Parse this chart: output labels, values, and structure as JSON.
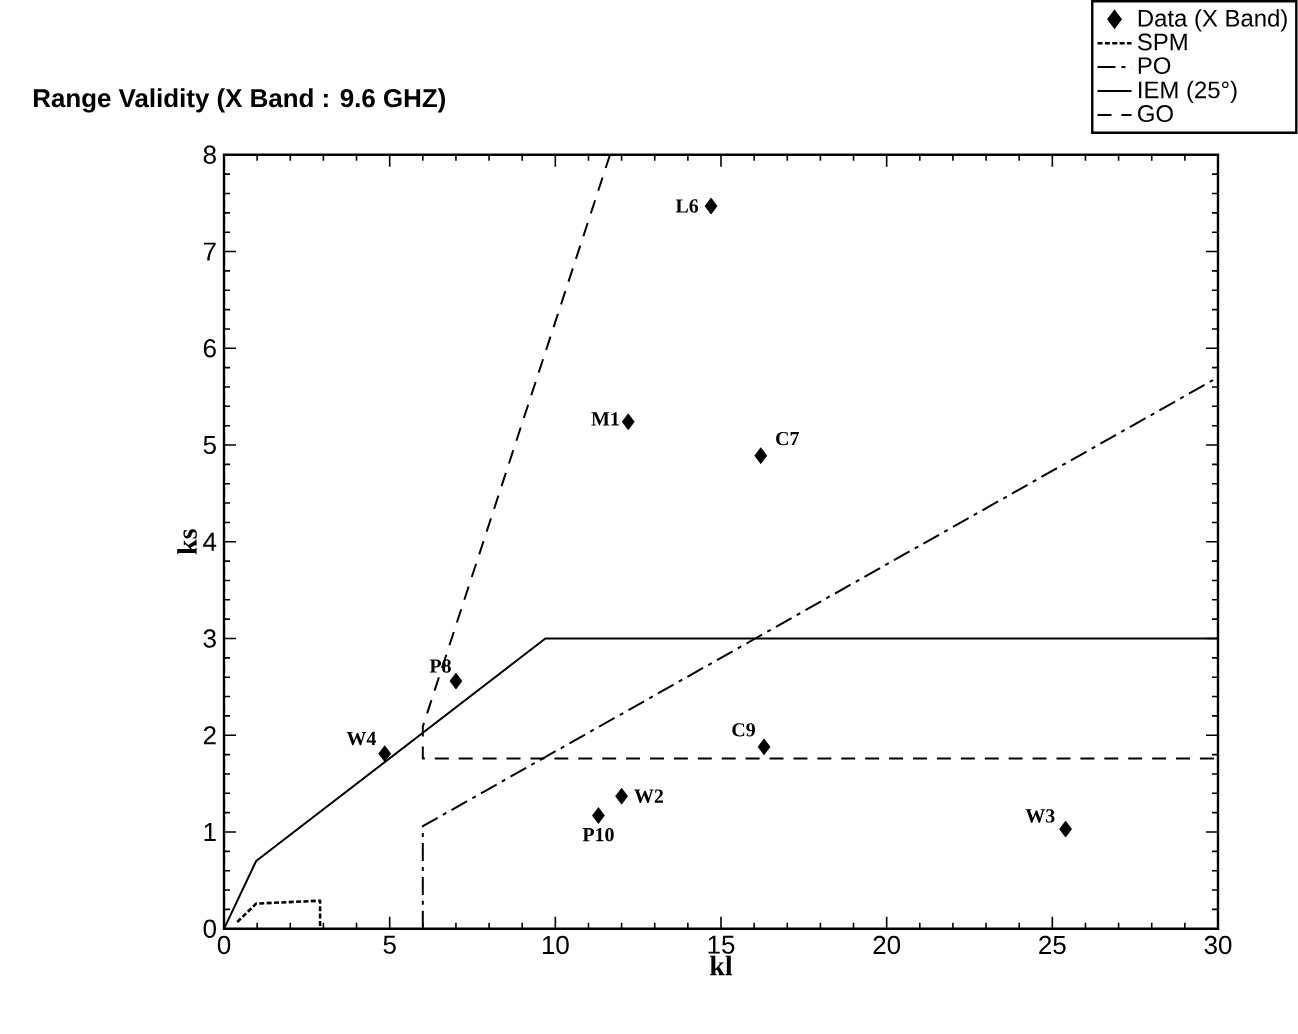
{
  "chart_data": {
    "type": "line",
    "title": "Range Validity (X Band : 9.6 GHZ)",
    "xlabel": "kl",
    "ylabel": "ks",
    "xlim": [
      0,
      30
    ],
    "ylim": [
      0,
      8
    ],
    "xticks": [
      0,
      5,
      10,
      15,
      20,
      25,
      30
    ],
    "yticks": [
      0,
      1,
      2,
      3,
      4,
      5,
      6,
      7,
      8
    ],
    "grid": false,
    "legend": "top right",
    "series": [
      {
        "name": "Data (X Band)",
        "type": "scatter",
        "marker": "diamond",
        "color": "#000000",
        "x": [
          14.7,
          12.2,
          16.2,
          7.0,
          4.85,
          16.3,
          12.0,
          11.3,
          25.4
        ],
        "values": [
          7.47,
          5.24,
          4.89,
          2.56,
          1.81,
          1.88,
          1.37,
          1.17,
          1.03
        ]
      },
      {
        "name": "SPM",
        "type": "line",
        "line_style": "dotted",
        "color": "#000000",
        "x": [
          0.4,
          0.97,
          2.9,
          2.9
        ],
        "values": [
          0.07,
          0.26,
          0.29,
          0
        ]
      },
      {
        "name": "PO",
        "type": "line",
        "line_style": "dashdot",
        "color": "#000000",
        "x": [
          6,
          6,
          30
        ],
        "values": [
          0,
          1.06,
          5.7
        ]
      },
      {
        "name": "IEM (25°)",
        "type": "line",
        "line_style": "solid",
        "color": "#000000",
        "x": [
          0,
          0.97,
          9.7,
          30
        ],
        "values": [
          0,
          0.7,
          3.0,
          3.0
        ]
      },
      {
        "name": "GO",
        "type": "line",
        "line_style": "dashed",
        "color": "#000000",
        "x": [
          11.65,
          6,
          6,
          30
        ],
        "values": [
          8,
          2.09,
          1.76,
          1.76
        ]
      }
    ],
    "annotations": [
      {
        "text": "L6",
        "x": 14.7,
        "y": 7.47
      },
      {
        "text": "M1",
        "x": 12.2,
        "y": 5.24
      },
      {
        "text": "C7",
        "x": 16.2,
        "y": 4.89
      },
      {
        "text": "P8",
        "x": 7.0,
        "y": 2.56
      },
      {
        "text": "W4",
        "x": 4.85,
        "y": 1.81
      },
      {
        "text": "C9",
        "x": 16.3,
        "y": 1.88
      },
      {
        "text": "W2",
        "x": 12.0,
        "y": 1.37
      },
      {
        "text": "P10",
        "x": 11.3,
        "y": 1.17
      },
      {
        "text": "W3",
        "x": 25.4,
        "y": 1.03
      }
    ]
  }
}
